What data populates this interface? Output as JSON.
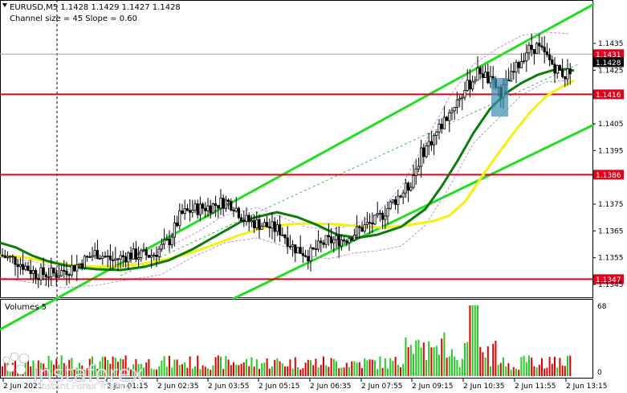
{
  "header": {
    "symbol_line": "EURUSD,M5  1.1428 1.1429 1.1427 1.1428",
    "indicator_line": "Channel size = 45 Slope = 0.60"
  },
  "volumes_panel": {
    "title": "Volumes 5",
    "max_label": "68",
    "min_label": "0"
  },
  "watermark": {
    "brand": "instaforex",
    "tagline": "Instant Forex Trading"
  },
  "colors": {
    "support_resistance": "#e0001b",
    "channel": "#22dd22",
    "ma_fast": "#0b7d0b",
    "ma_slow": "#f2f20a",
    "envelope": "#b07ad8",
    "volume_up": "#22cc22",
    "volume_down": "#e00000",
    "current_price": "#c8a050",
    "entry_box": "#3a8fb0"
  },
  "chart_data": {
    "type": "candlestick",
    "timeframe": "M5",
    "price_axis_ticks": [
      "1.1435",
      "1.1425",
      "1.1405",
      "1.1395",
      "1.1375",
      "1.1365",
      "1.1355",
      "1.1345"
    ],
    "time_axis_labels": [
      "2 Jun 2021",
      "2 Jun 01:15",
      "2 Jun 02:35",
      "2 Jun 03:55",
      "2 Jun 05:15",
      "2 Jun 06:35",
      "2 Jun 07:55",
      "2 Jun 09:15",
      "2 Jun 10:35",
      "2 Jun 11:55",
      "2 Jun 13:15"
    ],
    "levels": [
      {
        "label": "1.1431",
        "value": 1.1431,
        "kind": "current"
      },
      {
        "label": "1.1428",
        "value": 1.1428,
        "kind": "bid"
      },
      {
        "label": "1.1416",
        "value": 1.1416,
        "kind": "resistance"
      },
      {
        "label": "1.1386",
        "value": 1.1386,
        "kind": "resistance"
      },
      {
        "label": "1.1347",
        "value": 1.1347,
        "kind": "support"
      }
    ],
    "ylim": [
      1.134,
      1.1448
    ],
    "volume_max": 68,
    "grid": false
  }
}
